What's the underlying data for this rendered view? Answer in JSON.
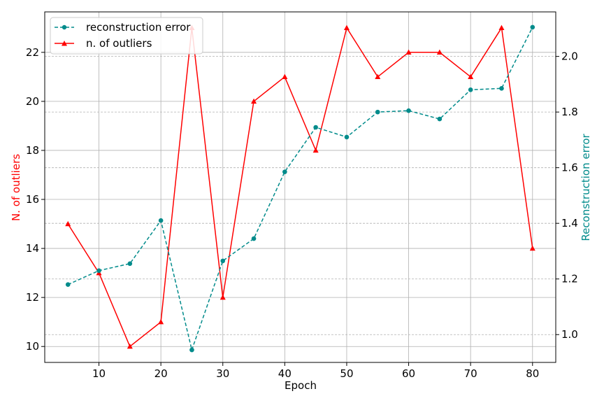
{
  "chart_data": {
    "type": "line",
    "xlabel": "Epoch",
    "ylabel_left": "N. of outliers",
    "ylabel_right": "Reconstruction error",
    "xlim": [
      1.25,
      83.75
    ],
    "ylim_left": [
      9.35,
      23.65
    ],
    "ylim_right": [
      0.9,
      2.16
    ],
    "x_ticks": [
      10,
      20,
      30,
      40,
      50,
      60,
      70,
      80
    ],
    "y_left_ticks": [
      10,
      12,
      14,
      16,
      18,
      20,
      22
    ],
    "y_right_ticks": [
      1.0,
      1.2,
      1.4,
      1.6,
      1.8,
      2.0
    ],
    "y_right_tick_labels": [
      "1.0",
      "1.2",
      "1.4",
      "1.6",
      "1.8",
      "2.0"
    ],
    "x": [
      5,
      10,
      15,
      20,
      25,
      30,
      35,
      40,
      45,
      50,
      55,
      60,
      65,
      70,
      75,
      80
    ],
    "series": [
      {
        "name": "n. of outliers",
        "axis": "left",
        "color": "#ff0000",
        "linestyle": "solid",
        "marker": "triangle",
        "values": [
          15,
          13,
          10,
          11,
          23,
          12,
          20,
          21,
          18,
          23,
          21,
          22,
          22,
          21,
          23,
          14
        ]
      },
      {
        "name": "reconstruction error",
        "axis": "right",
        "color": "#008b8b",
        "linestyle": "dashed",
        "marker": "circle",
        "values": [
          1.18,
          1.23,
          1.255,
          1.41,
          0.945,
          1.265,
          1.345,
          1.585,
          1.745,
          1.71,
          1.8,
          1.805,
          1.775,
          1.88,
          1.885,
          2.105
        ]
      }
    ],
    "legend": {
      "placement": "top-left",
      "entries": [
        "reconstruction error",
        "n. of outliers"
      ]
    },
    "grid": true
  }
}
